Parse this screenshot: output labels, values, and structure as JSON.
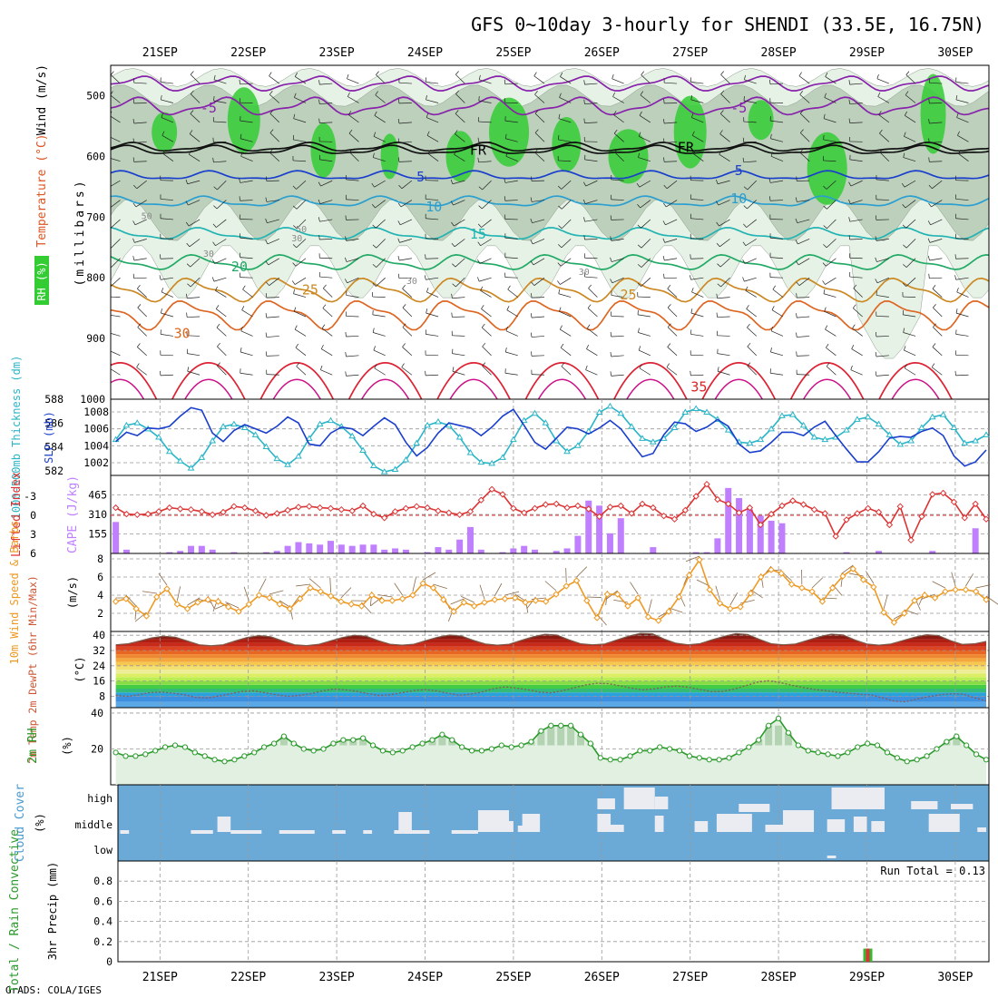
{
  "title": "GFS 0~10day 3-hourly for SHENDI (33.5E, 16.75N)",
  "footer": "GrADS: COLA/IGES",
  "colors": {
    "rh_green": "#33cc33",
    "rh_dark": "#bcd0bc",
    "rh_light": "#e6f2e6",
    "slp": "#1a3fcc",
    "thickness": "#2ab5c8",
    "cape": "#bf7fff",
    "lifted_index": "#dd3333",
    "wind_speed": "#ee9922",
    "barb": "#8a6a4a",
    "rh2m": "#2a9a2a",
    "cloud_bg": "#6baad6",
    "cloud_block": "#ebebf2"
  },
  "chart_data": [
    {
      "panel": "upper_air",
      "type": "contour",
      "dates": [
        "21SEP",
        "22SEP",
        "23SEP",
        "24SEP",
        "25SEP",
        "26SEP",
        "27SEP",
        "28SEP",
        "29SEP",
        "30SEP"
      ],
      "ylabel": "(millibars)",
      "ylim": [
        1000,
        450
      ],
      "yticks": [
        500,
        600,
        700,
        800,
        900,
        1000
      ],
      "left_titles": [
        {
          "text": "Wind (m/s)",
          "color": "#000000"
        },
        {
          "text": "Temperature (°C)",
          "color": "#dd5522"
        },
        {
          "text": "RH (%)",
          "color": "#229922"
        }
      ],
      "contour_labels": [
        {
          "text": "-5",
          "day": 0.55,
          "p": 520,
          "color": "#8822aa"
        },
        {
          "text": "-5",
          "day": 6.55,
          "p": 520,
          "color": "#8822aa"
        },
        {
          "text": "FR",
          "day": 3.6,
          "p": 590,
          "color": "#000000"
        },
        {
          "text": "FR",
          "day": 5.95,
          "p": 585,
          "color": "#000000"
        },
        {
          "text": "5",
          "day": 2.95,
          "p": 634,
          "color": "#1a3fcc"
        },
        {
          "text": "5",
          "day": 6.55,
          "p": 623,
          "color": "#1a3fcc"
        },
        {
          "text": "10",
          "day": 3.1,
          "p": 683,
          "color": "#2a9fd0"
        },
        {
          "text": "10",
          "day": 6.55,
          "p": 670,
          "color": "#2a9fd0"
        },
        {
          "text": "15",
          "day": 3.6,
          "p": 728,
          "color": "#22b3b3"
        },
        {
          "text": "20",
          "day": 0.9,
          "p": 782,
          "color": "#22aa66"
        },
        {
          "text": "25",
          "day": 1.7,
          "p": 820,
          "color": "#cc8822"
        },
        {
          "text": "25",
          "day": 5.3,
          "p": 828,
          "color": "#cc8822"
        },
        {
          "text": "30",
          "day": 0.25,
          "p": 892,
          "color": "#dd6622"
        },
        {
          "text": "35",
          "day": 6.1,
          "p": 980,
          "color": "#dd2222"
        }
      ],
      "rh_labels": [
        "30",
        "30",
        "50",
        "50",
        "30",
        "30"
      ],
      "temperature_levels_c": [
        -5,
        0,
        5,
        10,
        15,
        20,
        25,
        30,
        35
      ]
    },
    {
      "panel": "slp_thickness",
      "type": "line",
      "left_ticks": [
        "588",
        "586",
        "584",
        "582"
      ],
      "left_label": "1000-500mb Thickness (dm)",
      "right_ticks": [
        "1008",
        "1006",
        "1004",
        "1002"
      ],
      "right_label": "SLP (mb)",
      "series": [
        {
          "name": "SLP",
          "unit": "mb",
          "values": [
            1004.5,
            1005.6,
            1005.2,
            1006.1,
            1006.0,
            1006.3,
            1007.5,
            1008.5,
            1008.2,
            1005.5,
            1004.5,
            1005.8,
            1006.5,
            1006.0,
            1005.5,
            1006.3,
            1007.4,
            1006.7,
            1004.2,
            1004.0,
            1005.5,
            1006.2,
            1006.0,
            1005.2,
            1006.3,
            1007.3,
            1006.5,
            1004.4,
            1002.8,
            1003.8,
            1005.5,
            1006.7,
            1006.4,
            1006.1,
            1005.2,
            1006.2,
            1007.5,
            1008.3,
            1006.4,
            1004.4,
            1003.6,
            1004.9,
            1006.2,
            1006.0,
            1005.4,
            1006.1,
            1007.0,
            1006.0,
            1004.3,
            1002.7,
            1003.1,
            1005.3,
            1006.8,
            1006.6,
            1005.7,
            1006.2,
            1007.1,
            1006.3,
            1004.2,
            1003.2,
            1003.4,
            1004.4,
            1005.6,
            1005.6,
            1005.2,
            1006.2,
            1006.9,
            1005.2,
            1003.6,
            1002.1,
            1002.1,
            1003.3,
            1004.9,
            1005.1,
            1005.0,
            1005.7,
            1006.1,
            1005.2,
            1002.8,
            1001.6,
            1002.1,
            1003.5
          ]
        },
        {
          "name": "1000-500mb Thickness",
          "unit": "dm",
          "values": [
            584.6,
            585.8,
            586.0,
            585.5,
            584.8,
            583.6,
            582.8,
            582.2,
            583.1,
            584.5,
            585.7,
            585.9,
            585.6,
            585.0,
            584.0,
            583.0,
            582.5,
            583.2,
            584.7,
            585.9,
            586.2,
            585.7,
            584.9,
            583.7,
            582.4,
            581.9,
            582.1,
            582.9,
            584.3,
            585.8,
            586.1,
            585.8,
            584.8,
            583.5,
            582.7,
            582.6,
            583.1,
            584.6,
            586.2,
            586.8,
            586.0,
            584.5,
            583.6,
            584.1,
            585.3,
            586.9,
            587.4,
            586.8,
            585.7,
            584.7,
            584.4,
            584.7,
            585.6,
            586.9,
            587.2,
            586.9,
            586.3,
            585.4,
            584.4,
            584.3,
            584.6,
            585.5,
            586.6,
            586.7,
            585.8,
            584.8,
            584.6,
            584.8,
            585.4,
            586.3,
            586.5,
            585.9,
            585.0,
            584.2,
            584.5,
            585.6,
            586.5,
            586.7,
            585.6,
            584.3,
            584.5,
            585.0
          ]
        }
      ]
    },
    {
      "panel": "cape_lifted_index",
      "type": "bar",
      "left_label": "Lifted Index",
      "left_ticks": [
        "-3",
        "0",
        "3",
        "6"
      ],
      "right_label": "CAPE (J/kg)",
      "right_ticks": [
        "465",
        "310",
        "155"
      ],
      "cape_series": {
        "name": "CAPE",
        "unit": "J/kg",
        "values": [
          250,
          30,
          0,
          0,
          0,
          10,
          20,
          60,
          60,
          30,
          0,
          10,
          0,
          0,
          10,
          20,
          60,
          90,
          80,
          70,
          100,
          70,
          60,
          70,
          70,
          30,
          40,
          30,
          0,
          10,
          50,
          30,
          110,
          210,
          30,
          0,
          10,
          40,
          60,
          30,
          0,
          20,
          40,
          140,
          420,
          380,
          160,
          280,
          0,
          0,
          50,
          0,
          0,
          0,
          10,
          10,
          120,
          520,
          440,
          350,
          300,
          260,
          240,
          0,
          0,
          0,
          0,
          0,
          10,
          0,
          0,
          20,
          0,
          0,
          0,
          0,
          20,
          0,
          0,
          0,
          200,
          0
        ]
      },
      "li_series": {
        "name": "Lifted Index",
        "unit": "",
        "values": [
          -1.2,
          -0.2,
          -0.1,
          -0.2,
          -0.6,
          -1.2,
          -1.0,
          -0.9,
          -0.6,
          -0.1,
          -0.5,
          -1.4,
          -1.2,
          -0.7,
          0.0,
          -0.3,
          -0.8,
          -1.3,
          -1.4,
          -1.2,
          -1.1,
          -0.9,
          -0.7,
          -1.5,
          -0.2,
          0.4,
          -0.6,
          -1.1,
          -1.4,
          -1.2,
          -0.7,
          -0.4,
          -0.1,
          -0.6,
          -2.4,
          -4.1,
          -3.3,
          -1.1,
          -0.4,
          -1.1,
          -1.7,
          -1.8,
          -1.2,
          -1.5,
          -1.0,
          0.2,
          -1.3,
          -1.5,
          -0.3,
          -1.8,
          -1.2,
          0.1,
          0.6,
          -0.8,
          -3.0,
          -4.9,
          -2.5,
          -1.8,
          -0.4,
          -1.2,
          1.5,
          -0.2,
          -1.5,
          -2.3,
          -1.7,
          -0.9,
          -0.3,
          3.3,
          0.7,
          -0.3,
          -1.1,
          -0.5,
          1.5,
          -1.4,
          3.9,
          0.2,
          -3.3,
          -3.5,
          -2.1,
          0.4,
          -1.8,
          0.6
        ]
      }
    },
    {
      "panel": "wind_10m",
      "type": "line",
      "left_label": "10m Wind Speed & Barbs",
      "ylabel": "(m/s)",
      "ylim": [
        0,
        8
      ],
      "yticks": [
        "8",
        "6",
        "4",
        "2"
      ],
      "series": [
        {
          "name": "10m Wind Speed",
          "unit": "m/s",
          "values": [
            3.3,
            3.6,
            2.5,
            1.7,
            3.8,
            4.7,
            3.0,
            2.5,
            3.2,
            3.5,
            3.3,
            2.7,
            2.2,
            3.0,
            4.0,
            3.7,
            3.0,
            2.5,
            3.6,
            4.8,
            4.4,
            3.9,
            3.3,
            3.0,
            2.8,
            4.0,
            3.4,
            3.4,
            3.6,
            4.0,
            5.3,
            4.8,
            3.5,
            2.2,
            3.2,
            2.8,
            3.2,
            3.5,
            3.6,
            3.7,
            3.2,
            3.4,
            3.3,
            4.1,
            5.0,
            5.6,
            3.4,
            1.5,
            4.1,
            4.1,
            2.8,
            3.7,
            1.6,
            1.2,
            2.2,
            3.8,
            6.2,
            7.9,
            4.6,
            3.1,
            2.5,
            2.7,
            4.2,
            6.0,
            6.8,
            6.4,
            5.2,
            4.8,
            4.4,
            3.3,
            4.8,
            6.1,
            6.9,
            5.7,
            4.9,
            2.1,
            1.0,
            2.0,
            3.4,
            4.0,
            3.7,
            4.4,
            4.6,
            4.6,
            4.4,
            3.5
          ]
        }
      ]
    },
    {
      "panel": "temp_2m",
      "type": "area",
      "left_label": "2m Temp 2m DewPt (6hr Min/Max)",
      "ylabel": "(°C)",
      "yticks": [
        "40",
        "32",
        "24",
        "16",
        "8"
      ],
      "ylim": [
        2,
        42
      ],
      "series": [
        {
          "name": "2m Temp",
          "unit": "°C",
          "values": [
            35,
            35.5,
            37,
            38.6,
            39.5,
            39,
            37,
            35,
            34.5,
            35,
            37,
            38.8,
            39.8,
            39.2,
            37,
            35,
            34.6,
            35.2,
            37,
            38.8,
            40,
            39.5,
            37.2,
            35.3,
            34.8,
            35.3,
            37.2,
            39,
            40.1,
            39.6,
            37.3,
            35.4,
            34.8,
            35.3,
            37.3,
            39.2,
            40.5,
            40.1,
            37.6,
            35.5,
            35,
            35.4,
            37.5,
            39.5,
            41,
            40.8,
            38,
            35.8,
            35,
            35.6,
            37.6,
            39.4,
            40.9,
            40.4,
            37.8,
            35.5,
            35,
            35.4,
            37.3,
            39.2,
            40.6,
            40.2,
            37.5,
            35.4,
            34.8,
            35.4,
            37.2,
            39,
            40.3,
            39.8,
            37.2,
            35.2,
            35.5,
            36.8
          ]
        },
        {
          "name": "2m DewPt",
          "unit": "°C",
          "values": [
            8.5,
            7.9,
            8.8,
            9.9,
            10.2,
            9.6,
            8.8,
            7.4,
            7.1,
            8.1,
            9.3,
            10.5,
            10.8,
            9.9,
            8.8,
            8.0,
            8.4,
            9.3,
            10.7,
            11.8,
            11.4,
            10.6,
            9.4,
            8.4,
            8.8,
            9.9,
            10.9,
            11.5,
            10.8,
            9.6,
            8.5,
            9.1,
            10.3,
            12.0,
            12.9,
            12.3,
            11.4,
            10.2,
            9.8,
            10.9,
            12.4,
            13.9,
            14.8,
            14.6,
            13.5,
            12.3,
            11.4,
            11.9,
            12.9,
            13.3,
            12.7,
            11.6,
            10.4,
            10.5,
            11.8,
            13.5,
            15.4,
            16.1,
            15.2,
            13.8,
            12.6,
            11.6,
            10.9,
            10.1,
            9.6,
            9.0,
            8.6,
            7.1,
            5.4,
            5.1,
            6.6,
            7.8,
            8.8,
            9.3,
            9.1,
            7.2,
            5.6
          ]
        }
      ]
    },
    {
      "panel": "rh_2m",
      "type": "area",
      "left_label": "2m RH",
      "ylabel": "(%)",
      "yticks": [
        "40",
        "20"
      ],
      "ylim": [
        0,
        40
      ],
      "series": [
        {
          "name": "2m RH",
          "unit": "%",
          "values": [
            18,
            16,
            16,
            17,
            19,
            21,
            22,
            21,
            18,
            16,
            14,
            13,
            14,
            16,
            18,
            21,
            23,
            27,
            23,
            20,
            19,
            20,
            23,
            25,
            25,
            26,
            22,
            19,
            18,
            19,
            21,
            23,
            25,
            28,
            25,
            21,
            19,
            19,
            20,
            22,
            21,
            22,
            24,
            30,
            33,
            33,
            33,
            28,
            23,
            15,
            14,
            14,
            16,
            19,
            19,
            21,
            20,
            19,
            16,
            15,
            14,
            14,
            15,
            18,
            21,
            25,
            33,
            37,
            29,
            22,
            19,
            18,
            17,
            16,
            18,
            21,
            23,
            22,
            18,
            15,
            13,
            14,
            16,
            20,
            24,
            27,
            22,
            17,
            14
          ]
        }
      ]
    },
    {
      "panel": "cloud_cover",
      "type": "heatmap",
      "left_label": "Cloud Cover",
      "ylabel": "(%)",
      "yticks": [
        "high",
        "middle",
        "low"
      ],
      "layers": [
        "high",
        "middle",
        "low"
      ]
    },
    {
      "panel": "precip",
      "type": "bar",
      "left_label": "Total / Rain Convective",
      "ylabel": "3hr Precip (mm)",
      "ylim": [
        0,
        1
      ],
      "yticks": [
        "0.8",
        "0.6",
        "0.4",
        "0.2",
        "0"
      ],
      "run_total_text": "Run Total = 0.13",
      "values": [
        {
          "date": "29SEP",
          "total": 0.13,
          "convective": 0.13
        }
      ]
    }
  ]
}
